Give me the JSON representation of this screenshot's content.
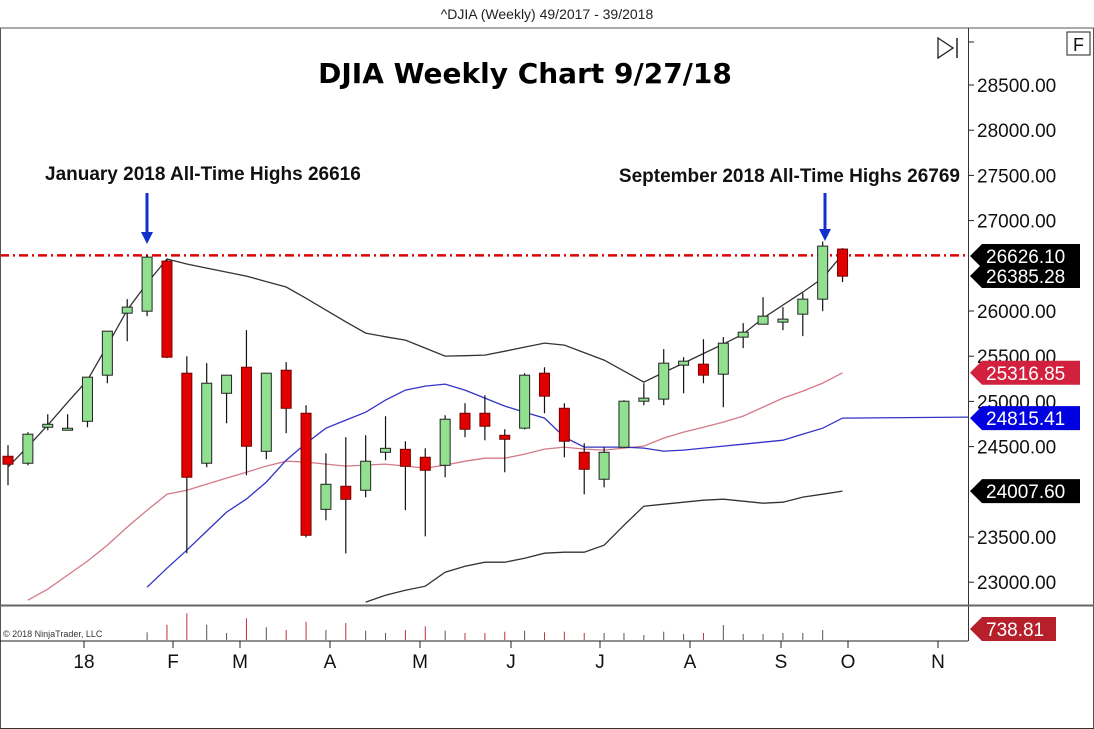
{
  "window_title": "^DJIA (Weekly)  49/2017 - 39/2018",
  "f_button_label": "F",
  "scroll_end_icon": "skip-to-end-icon",
  "copyright": "© 2018 NinjaTrader, LLC",
  "colors": {
    "up": "#90e090",
    "down": "#e00000",
    "upper_band": "#333333",
    "lower_band": "#333333",
    "blue_line": "#3333c8",
    "pink_line": "#d47a88",
    "high_line": "#e00000",
    "arrow": "#1030d0"
  },
  "chart_data": {
    "type": "candlestick",
    "title": "DJIA Weekly Chart 9/27/18",
    "x_tick_labels": [
      "18",
      "F",
      "M",
      "A",
      "M",
      "J",
      "J",
      "A",
      "S",
      "O",
      "N"
    ],
    "y_tick_labels": [
      "28500.00",
      "28000.00",
      "27500.00",
      "27000.00",
      "26000.00",
      "25500.00",
      "25000.00",
      "24500.00",
      "23500.00",
      "23000.00"
    ],
    "y_ticks": [
      28500,
      28000,
      27500,
      27000,
      26000,
      25500,
      25000,
      24500,
      23500,
      23000
    ],
    "ylim": [
      22800,
      29150
    ],
    "grid": false,
    "ohlc": [
      [
        24393,
        24516,
        24073,
        24305
      ],
      [
        24316,
        24659,
        24293,
        24637
      ],
      [
        24725,
        24858,
        24681,
        24736
      ],
      [
        24692,
        24858,
        24692,
        24692
      ],
      [
        24780,
        25268,
        24714,
        25268
      ],
      [
        25290,
        25777,
        25201,
        25777
      ],
      [
        25976,
        26131,
        25666,
        26043
      ],
      [
        25998,
        26616,
        25943,
        26596
      ],
      [
        26552,
        26574,
        25478,
        25489
      ],
      [
        25312,
        25500,
        23319,
        24161
      ],
      [
        24316,
        25423,
        24271,
        25201
      ],
      [
        25090,
        25290,
        24758,
        25290
      ],
      [
        25378,
        25788,
        24183,
        24504
      ],
      [
        24448,
        25312,
        24360,
        25312
      ],
      [
        25345,
        25434,
        24648,
        24924
      ],
      [
        24869,
        24958,
        23496,
        23519
      ],
      [
        23806,
        24426,
        23685,
        24083
      ],
      [
        24061,
        24604,
        23319,
        23917
      ],
      [
        24017,
        24626,
        23939,
        24338
      ],
      [
        24448,
        24836,
        24349,
        24470
      ],
      [
        24470,
        24559,
        23797,
        24282
      ],
      [
        24382,
        24481,
        23507,
        24238
      ],
      [
        24293,
        24847,
        24161,
        24803
      ],
      [
        24869,
        24980,
        24604,
        24692
      ],
      [
        24869,
        25068,
        24570,
        24725
      ],
      [
        24614,
        24692,
        24216,
        24592
      ],
      [
        24704,
        25310,
        24690,
        25290
      ],
      [
        25312,
        25378,
        24869,
        25058
      ],
      [
        24924,
        24980,
        24382,
        24559
      ],
      [
        24437,
        24537,
        23972,
        24249
      ],
      [
        24139,
        24493,
        24050,
        24437
      ],
      [
        24493,
        25013,
        24493,
        25002
      ],
      [
        25002,
        25201,
        24958,
        25036
      ],
      [
        25025,
        25578,
        24958,
        25423
      ],
      [
        25412,
        25489,
        25090,
        25434
      ],
      [
        25412,
        25688,
        25201,
        25290
      ],
      [
        25301,
        25711,
        24936,
        25644
      ],
      [
        25711,
        25866,
        25589,
        25766
      ],
      [
        25854,
        26153,
        25854,
        25943
      ],
      [
        25888,
        26043,
        25788,
        25899
      ],
      [
        25965,
        26198,
        25722,
        26131
      ],
      [
        26131,
        26769,
        25998,
        26718
      ],
      [
        26685,
        26696,
        26320,
        26385.28
      ]
    ],
    "volume": [
      null,
      null,
      null,
      null,
      null,
      null,
      null,
      570,
      1130,
      1975,
      1130,
      518,
      1606,
      940,
      740,
      1354,
      740,
      1258,
      688,
      518,
      740,
      1014,
      688,
      518,
      518,
      614,
      688,
      570,
      614,
      518,
      518,
      518,
      370,
      614,
      444,
      518,
      1110,
      444,
      444,
      518,
      518,
      739,
      null
    ],
    "upper_band": [
      24273,
      24500,
      24737,
      24990,
      25236,
      25620,
      26010,
      26309,
      26575,
      26520,
      26475,
      26430,
      26386,
      26325,
      26265,
      26140,
      26010,
      25880,
      25756,
      25715,
      25678,
      25590,
      25501,
      25505,
      25512,
      25555,
      25601,
      25645,
      25623,
      25540,
      25457,
      25335,
      25213,
      25320,
      25424,
      25530,
      25634,
      25745,
      25922,
      26065,
      26209,
      26364,
      26626.1
    ],
    "blue_line": [
      null,
      null,
      null,
      null,
      null,
      null,
      null,
      22945,
      23155,
      23354,
      23565,
      23775,
      23919,
      24107,
      24350,
      24538,
      24704,
      24793,
      24881,
      25014,
      25125,
      25169,
      25191,
      25125,
      25036,
      24948,
      24881,
      24815,
      24605,
      24494,
      24494,
      24494,
      24483,
      24450,
      24461,
      24483,
      24505,
      24527,
      24549,
      24571,
      24638,
      24704,
      24815.41
    ],
    "pink_line": [
      null,
      22801,
      22923,
      23078,
      23233,
      23410,
      23609,
      23797,
      23974,
      24018,
      24085,
      24151,
      24217,
      24284,
      24339,
      24328,
      24306,
      24284,
      24295,
      24306,
      24284,
      24262,
      24295,
      24339,
      24372,
      24372,
      24417,
      24472,
      24494,
      24472,
      24461,
      24483,
      24505,
      24594,
      24660,
      24715,
      24771,
      24837,
      24937,
      25036,
      25114,
      25202,
      25316.85
    ],
    "lower_band": [
      null,
      null,
      null,
      null,
      null,
      null,
      null,
      null,
      null,
      null,
      null,
      null,
      null,
      null,
      null,
      null,
      null,
      null,
      22780,
      22856,
      22911,
      22956,
      23111,
      23177,
      23221,
      23221,
      23266,
      23321,
      23332,
      23332,
      23409,
      23631,
      23841,
      23863,
      23885,
      23907,
      23918,
      23896,
      23874,
      23885,
      23941,
      23974,
      24007.6
    ],
    "horizontal_line": 26616,
    "annotations": [
      {
        "text": "January 2018 All-Time Highs 26616",
        "candle": 7
      },
      {
        "text": "September 2018 All-Time Highs 26769",
        "candle": 41
      }
    ],
    "price_tags": [
      {
        "text": "26626.10",
        "value": 26626.1,
        "color": "#000000"
      },
      {
        "text": "26385.28",
        "value": 26385.28,
        "color": "#000000"
      },
      {
        "text": "25316.85",
        "value": 25316.85,
        "color": "#d2203f"
      },
      {
        "text": "24815.41",
        "value": 24815.41,
        "color": "#0000e0"
      },
      {
        "text": "24007.60",
        "value": 24007.6,
        "color": "#000000"
      }
    ],
    "volume_tag": {
      "text": "738.81",
      "value": 738.81,
      "color": "#b5202a"
    }
  }
}
